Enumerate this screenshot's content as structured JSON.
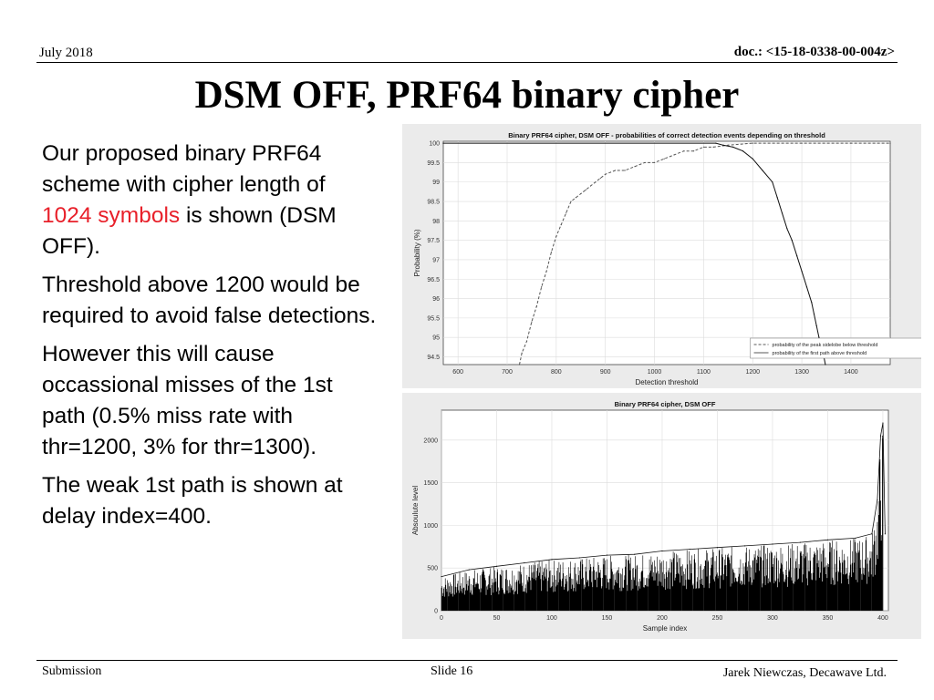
{
  "header": {
    "date": "July 2018",
    "doc": "doc.: <15-18-0338-00-004z>"
  },
  "title": "DSM OFF, PRF64 binary cipher",
  "paragraphs": {
    "p1_before": "Our proposed binary PRF64 scheme with cipher length of ",
    "p1_highlight": "1024 symbols",
    "p1_after": " is shown (DSM OFF).",
    "p2": "Threshold above 1200 would be required to avoid false detections.",
    "p3": "However this will cause occassional misses of the 1st path (0.5% miss rate with thr=1200, 3% for thr=1300).",
    "p4": "The weak 1st path is shown at delay index=400."
  },
  "colors": {
    "highlight": "#e8202a",
    "figure_bg": "#ebebeb"
  },
  "chart_data": [
    {
      "type": "line",
      "title": "Binary PRF64 cipher, DSM OFF - probabilities of correct detection events depending on threshold",
      "xlabel": "Detection threshold",
      "ylabel": "Probability (%)",
      "xlim": [
        570,
        1480
      ],
      "ylim": [
        94.3,
        100.05
      ],
      "xticks": [
        600,
        700,
        800,
        900,
        1000,
        1100,
        1200,
        1300,
        1400
      ],
      "yticks": [
        94.5,
        95,
        95.5,
        96,
        96.5,
        97,
        97.5,
        98,
        98.5,
        99,
        99.5,
        100
      ],
      "grid": true,
      "legend_position": "bottom-right",
      "series": [
        {
          "name": "probability of the peak sidelobe below threshold",
          "style": "dashed",
          "x": [
            725,
            730,
            740,
            750,
            760,
            770,
            780,
            790,
            800,
            810,
            820,
            830,
            840,
            850,
            860,
            870,
            880,
            890,
            900,
            920,
            940,
            960,
            980,
            1000,
            1020,
            1040,
            1060,
            1080,
            1100,
            1120,
            1150,
            1200,
            1300,
            1400,
            1480
          ],
          "values": [
            94.3,
            94.6,
            94.9,
            95.4,
            95.8,
            96.3,
            96.7,
            97.2,
            97.6,
            97.9,
            98.2,
            98.5,
            98.6,
            98.7,
            98.8,
            98.9,
            99.0,
            99.1,
            99.2,
            99.3,
            99.3,
            99.4,
            99.5,
            99.5,
            99.6,
            99.7,
            99.8,
            99.8,
            99.9,
            99.9,
            99.95,
            100,
            100,
            100,
            100
          ]
        },
        {
          "name": "probability of the first path above threshold",
          "style": "solid",
          "x": [
            570,
            1125,
            1140,
            1160,
            1180,
            1200,
            1220,
            1240,
            1250,
            1260,
            1270,
            1280,
            1290,
            1300,
            1310,
            1320,
            1325,
            1330,
            1335,
            1340,
            1345,
            1348
          ],
          "values": [
            100,
            100,
            99.95,
            99.9,
            99.8,
            99.6,
            99.3,
            99.0,
            98.6,
            98.2,
            97.8,
            97.5,
            97.1,
            96.7,
            96.3,
            95.9,
            95.6,
            95.3,
            95.0,
            94.8,
            94.5,
            94.3
          ]
        }
      ]
    },
    {
      "type": "line",
      "title": "Binary PRF64 cipher, DSM OFF",
      "xlabel": "Sample index",
      "ylabel": "Absoulute level",
      "xlim": [
        0,
        405
      ],
      "ylim": [
        0,
        2350
      ],
      "xticks": [
        0,
        50,
        100,
        150,
        200,
        250,
        300,
        350,
        400
      ],
      "yticks": [
        0,
        500,
        1000,
        1500,
        2000
      ],
      "grid": true,
      "series": [
        {
          "name": "",
          "x": [
            0,
            25,
            50,
            75,
            100,
            125,
            150,
            175,
            200,
            225,
            250,
            275,
            300,
            325,
            350,
            375,
            390,
            395,
            398,
            400,
            402
          ],
          "values": [
            400,
            480,
            520,
            560,
            600,
            620,
            650,
            660,
            700,
            720,
            740,
            760,
            780,
            800,
            830,
            850,
            900,
            1300,
            2050,
            2200,
            900
          ]
        }
      ]
    }
  ],
  "footer": {
    "submission": "Submission",
    "slide": "Slide 16",
    "author": "Jarek Niewczas,  Decawave Ltd."
  }
}
